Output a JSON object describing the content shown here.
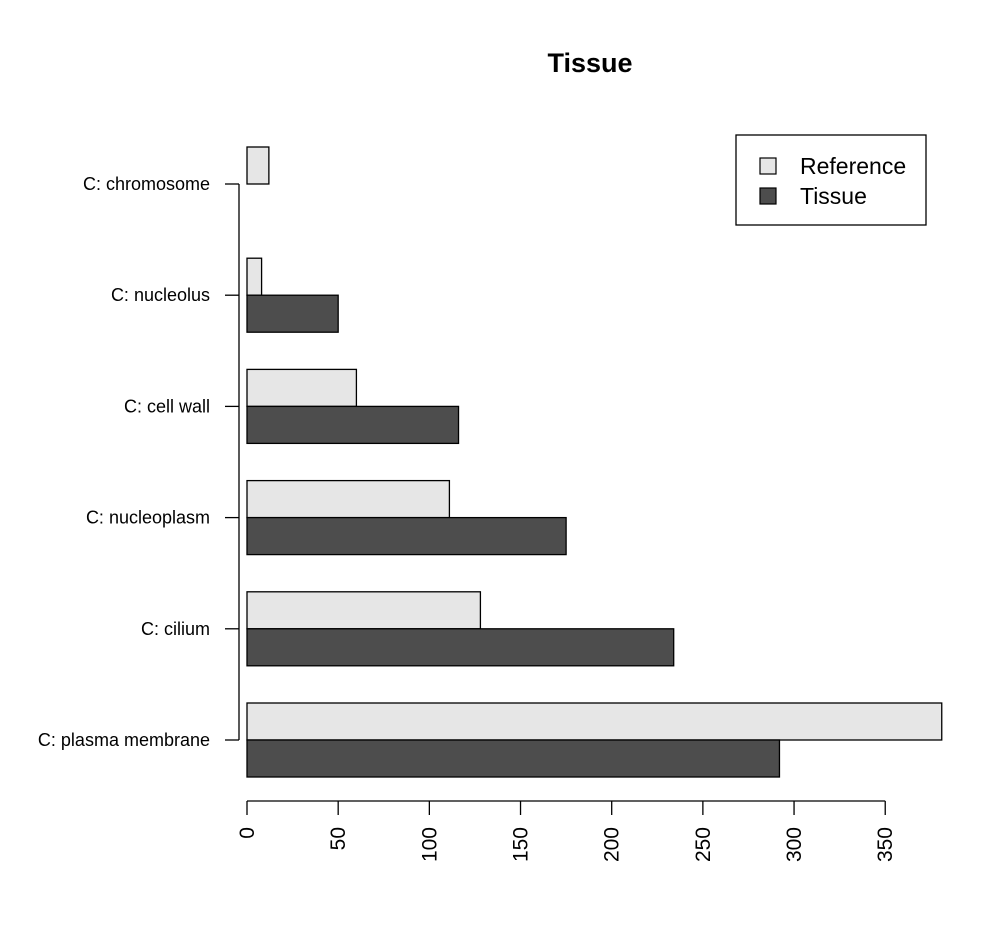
{
  "chart_data": {
    "type": "bar",
    "orientation": "horizontal",
    "title": "Tissue",
    "xlabel": "",
    "ylabel": "",
    "categories": [
      "C: plasma membrane",
      "C: cilium",
      "C: nucleoplasm",
      "C: cell wall",
      "C: nucleolus",
      "C: chromosome"
    ],
    "series": [
      {
        "name": "Reference",
        "color": "#e6e6e6",
        "values": [
          381,
          128,
          111,
          60,
          8,
          12
        ]
      },
      {
        "name": "Tissue",
        "color": "#4d4d4d",
        "values": [
          292,
          234,
          175,
          116,
          50,
          0
        ]
      }
    ],
    "xlim": [
      0,
      381
    ],
    "xticks": [
      "0",
      "50",
      "100",
      "150",
      "200",
      "250",
      "300",
      "350"
    ],
    "grid": false,
    "legend_position": "top-right"
  }
}
